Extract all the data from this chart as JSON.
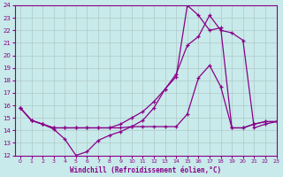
{
  "xlabel": "Windchill (Refroidissement éolien,°C)",
  "xlim": [
    -0.5,
    23
  ],
  "ylim": [
    12,
    24
  ],
  "xticks": [
    0,
    1,
    2,
    3,
    4,
    5,
    6,
    7,
    8,
    9,
    10,
    11,
    12,
    13,
    14,
    15,
    16,
    17,
    18,
    19,
    20,
    21,
    22,
    23
  ],
  "yticks": [
    12,
    13,
    14,
    15,
    16,
    17,
    18,
    19,
    20,
    21,
    22,
    23,
    24
  ],
  "bg_color": "#c8eaea",
  "line_color": "#880088",
  "grid_color": "#b0c8c8",
  "line1_x": [
    0,
    1,
    2,
    3,
    4,
    5,
    6,
    7,
    8,
    9,
    10,
    11,
    12,
    13,
    14,
    15,
    16,
    17,
    18,
    19,
    20,
    21,
    22,
    23
  ],
  "line1_y": [
    15.8,
    14.8,
    14.5,
    14.1,
    13.3,
    12.0,
    12.3,
    13.2,
    13.6,
    13.9,
    14.3,
    14.3,
    14.3,
    14.3,
    14.3,
    15.3,
    18.2,
    19.2,
    17.5,
    14.2,
    14.2,
    14.5,
    14.7,
    14.7
  ],
  "line2_x": [
    0,
    1,
    2,
    3,
    4,
    5,
    6,
    7,
    8,
    9,
    10,
    11,
    12,
    13,
    14,
    15,
    16,
    17,
    18,
    19,
    20,
    21,
    22,
    23
  ],
  "line2_y": [
    15.8,
    14.8,
    14.5,
    14.2,
    14.2,
    14.2,
    14.2,
    14.2,
    14.2,
    14.2,
    14.3,
    14.8,
    15.8,
    17.3,
    18.3,
    24.0,
    23.2,
    22.0,
    22.2,
    14.2,
    14.2,
    14.5,
    14.7,
    14.7
  ],
  "line3_x": [
    0,
    1,
    2,
    3,
    4,
    5,
    6,
    7,
    8,
    9,
    10,
    11,
    12,
    13,
    14,
    15,
    16,
    17,
    18,
    19,
    20,
    21,
    22,
    23
  ],
  "line3_y": [
    15.8,
    14.8,
    14.5,
    14.2,
    14.2,
    14.2,
    14.2,
    14.2,
    14.2,
    14.5,
    15.0,
    15.5,
    16.3,
    17.3,
    18.5,
    20.8,
    21.5,
    23.2,
    22.0,
    21.8,
    21.2,
    14.2,
    14.5,
    14.7
  ]
}
